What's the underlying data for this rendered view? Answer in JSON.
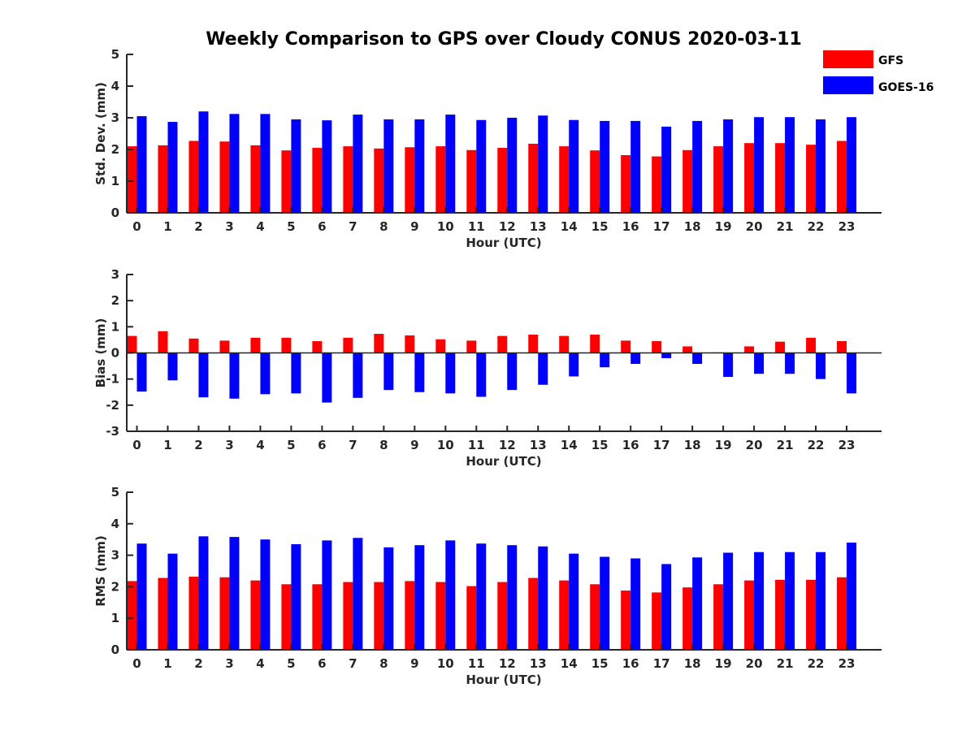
{
  "title": "Weekly Comparison to GPS over Cloudy CONUS 2020-03-11",
  "legend": [
    {
      "name": "GFS",
      "color": "#ff0000"
    },
    {
      "name": "GOES-16",
      "color": "#0000ff"
    }
  ],
  "chart_data": [
    {
      "type": "bar",
      "xlabel": "Hour (UTC)",
      "ylabel": "Std. Dev. (mm)",
      "ylim": [
        0,
        5
      ],
      "yticks": [
        0,
        1,
        2,
        3,
        4,
        5
      ],
      "grid": false,
      "legend_position": "top-right",
      "categories": [
        "0",
        "1",
        "2",
        "3",
        "4",
        "5",
        "6",
        "7",
        "8",
        "9",
        "10",
        "11",
        "12",
        "13",
        "14",
        "15",
        "16",
        "17",
        "18",
        "19",
        "20",
        "21",
        "22",
        "23"
      ],
      "series": [
        {
          "name": "GFS",
          "color": "#ff0000",
          "values": [
            2.1,
            2.13,
            2.27,
            2.25,
            2.13,
            1.97,
            2.05,
            2.1,
            2.03,
            2.07,
            2.1,
            1.98,
            2.05,
            2.18,
            2.1,
            1.97,
            1.82,
            1.78,
            1.98,
            2.1,
            2.2,
            2.2,
            2.15,
            2.27
          ]
        },
        {
          "name": "GOES-16",
          "color": "#0000ff",
          "values": [
            3.05,
            2.87,
            3.2,
            3.12,
            3.12,
            2.95,
            2.92,
            3.1,
            2.95,
            2.95,
            3.1,
            2.93,
            3.0,
            3.07,
            2.93,
            2.9,
            2.9,
            2.72,
            2.9,
            2.95,
            3.02,
            3.02,
            2.95,
            3.02
          ]
        }
      ]
    },
    {
      "type": "bar",
      "xlabel": "Hour (UTC)",
      "ylabel": "Bias (mm)",
      "ylim": [
        -3,
        3
      ],
      "yticks": [
        -3,
        -2,
        -1,
        0,
        1,
        2,
        3
      ],
      "grid": false,
      "categories": [
        "0",
        "1",
        "2",
        "3",
        "4",
        "5",
        "6",
        "7",
        "8",
        "9",
        "10",
        "11",
        "12",
        "13",
        "14",
        "15",
        "16",
        "17",
        "18",
        "19",
        "20",
        "21",
        "22",
        "23"
      ],
      "series": [
        {
          "name": "GFS",
          "color": "#ff0000",
          "values": [
            0.65,
            0.83,
            0.55,
            0.47,
            0.58,
            0.58,
            0.45,
            0.58,
            0.73,
            0.67,
            0.52,
            0.47,
            0.65,
            0.7,
            0.65,
            0.7,
            0.47,
            0.45,
            0.25,
            0.02,
            0.25,
            0.43,
            0.58,
            0.45
          ]
        },
        {
          "name": "GOES-16",
          "color": "#0000ff",
          "values": [
            -1.48,
            -1.05,
            -1.7,
            -1.75,
            -1.58,
            -1.55,
            -1.9,
            -1.72,
            -1.42,
            -1.5,
            -1.55,
            -1.68,
            -1.42,
            -1.22,
            -0.9,
            -0.55,
            -0.42,
            -0.2,
            -0.42,
            -0.92,
            -0.8,
            -0.8,
            -1.0,
            -1.55
          ]
        }
      ]
    },
    {
      "type": "bar",
      "xlabel": "Hour (UTC)",
      "ylabel": "RMS (mm)",
      "ylim": [
        0,
        5
      ],
      "yticks": [
        0,
        1,
        2,
        3,
        4,
        5
      ],
      "grid": false,
      "categories": [
        "0",
        "1",
        "2",
        "3",
        "4",
        "5",
        "6",
        "7",
        "8",
        "9",
        "10",
        "11",
        "12",
        "13",
        "14",
        "15",
        "16",
        "17",
        "18",
        "19",
        "20",
        "21",
        "22",
        "23"
      ],
      "series": [
        {
          "name": "GFS",
          "color": "#ff0000",
          "values": [
            2.18,
            2.28,
            2.32,
            2.3,
            2.2,
            2.08,
            2.08,
            2.15,
            2.15,
            2.18,
            2.15,
            2.02,
            2.15,
            2.28,
            2.2,
            2.08,
            1.88,
            1.82,
            1.98,
            2.08,
            2.2,
            2.22,
            2.22,
            2.3
          ]
        },
        {
          "name": "GOES-16",
          "color": "#0000ff",
          "values": [
            3.37,
            3.05,
            3.6,
            3.58,
            3.5,
            3.35,
            3.47,
            3.55,
            3.25,
            3.32,
            3.47,
            3.37,
            3.32,
            3.28,
            3.05,
            2.95,
            2.9,
            2.72,
            2.93,
            3.08,
            3.1,
            3.1,
            3.1,
            3.4
          ]
        }
      ]
    }
  ]
}
